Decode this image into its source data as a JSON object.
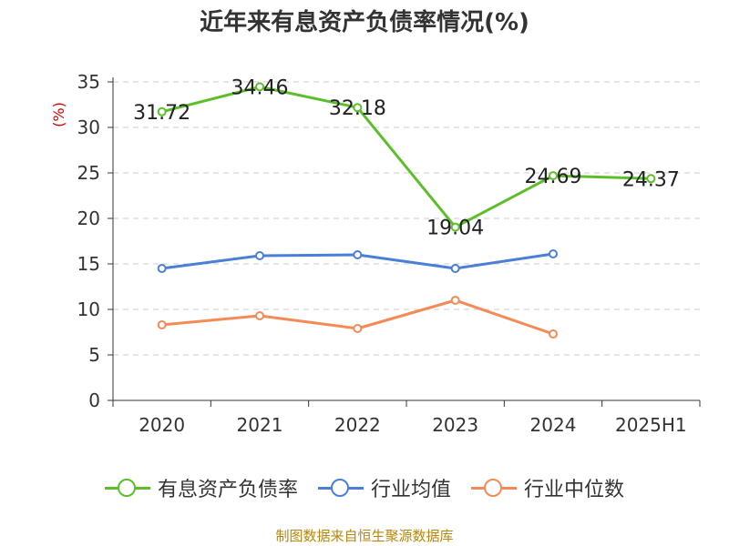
{
  "title": "近年来有息资产负债率情况(%)",
  "source": "制图数据来自恒生聚源数据库",
  "chart_data": {
    "type": "line",
    "title": "近年来有息资产负债率情况(%)",
    "ylabel": "(%)",
    "xlabel": "",
    "categories": [
      "2020",
      "2021",
      "2022",
      "2023",
      "2024",
      "2025H1"
    ],
    "ylim": [
      0,
      35
    ],
    "yticks": [
      0,
      5,
      10,
      15,
      20,
      25,
      30,
      35
    ],
    "grid": true,
    "legend_position": "bottom",
    "series": [
      {
        "name": "有息资产负债率",
        "color": "#5cbf2a",
        "values": [
          31.72,
          34.46,
          32.18,
          19.04,
          24.69,
          24.37
        ],
        "labels": [
          "31.72",
          "34.46",
          "32.18",
          "19.04",
          "24.69",
          "24.37"
        ]
      },
      {
        "name": "行业均值",
        "color": "#4a7fd6",
        "values": [
          14.5,
          15.9,
          16.0,
          14.5,
          16.1,
          null
        ]
      },
      {
        "name": "行业中位数",
        "color": "#f58a56",
        "values": [
          8.3,
          9.3,
          7.9,
          11.0,
          7.3,
          null
        ]
      }
    ]
  }
}
